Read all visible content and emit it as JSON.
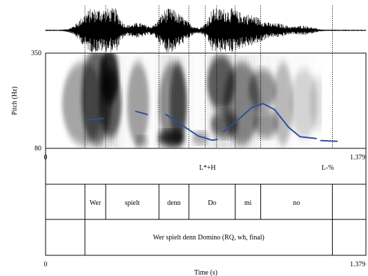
{
  "pitch_axis": {
    "label": "Pitch (Hz)",
    "top_tick": "350",
    "bottom_tick": "80",
    "range_hz": [
      80,
      350
    ]
  },
  "time_axis": {
    "label": "Time (s)",
    "start": "0",
    "end": "1.379",
    "range_s": [
      0,
      1.379
    ]
  },
  "tone_tier": {
    "labels": [
      {
        "text": "L*+H",
        "time_s": 0.7
      },
      {
        "text": "L-%",
        "time_s": 1.22
      }
    ]
  },
  "syllable_tier": {
    "boundaries_s": [
      0.17,
      0.26,
      0.49,
      0.62,
      0.82,
      0.93,
      1.24
    ],
    "labels": [
      "Wer",
      "spielt",
      "denn",
      "Do",
      "mi",
      "no"
    ]
  },
  "sentence_tier": {
    "start_s": 0.17,
    "end_s": 1.24,
    "text": "Wer spielt denn Domino (RQ, wh, final)"
  },
  "pitch_contour_hz": [
    [
      [
        0.18,
        160
      ],
      [
        0.25,
        165
      ]
    ],
    [
      [
        0.39,
        185
      ],
      [
        0.44,
        176
      ]
    ],
    [
      [
        0.52,
        176
      ],
      [
        0.58,
        150
      ],
      [
        0.66,
        115
      ],
      [
        0.72,
        103
      ],
      [
        0.74,
        105
      ]
    ],
    [
      [
        0.77,
        128
      ],
      [
        0.83,
        160
      ],
      [
        0.89,
        195
      ],
      [
        0.94,
        207
      ],
      [
        0.99,
        190
      ],
      [
        1.05,
        140
      ],
      [
        1.1,
        113
      ],
      [
        1.17,
        108
      ]
    ],
    [
      [
        1.19,
        102
      ],
      [
        1.26,
        100
      ]
    ]
  ],
  "dotted_guides_s": [
    0.17,
    0.26,
    0.49,
    0.62,
    0.69,
    0.74,
    0.82,
    0.93,
    1.24
  ]
}
